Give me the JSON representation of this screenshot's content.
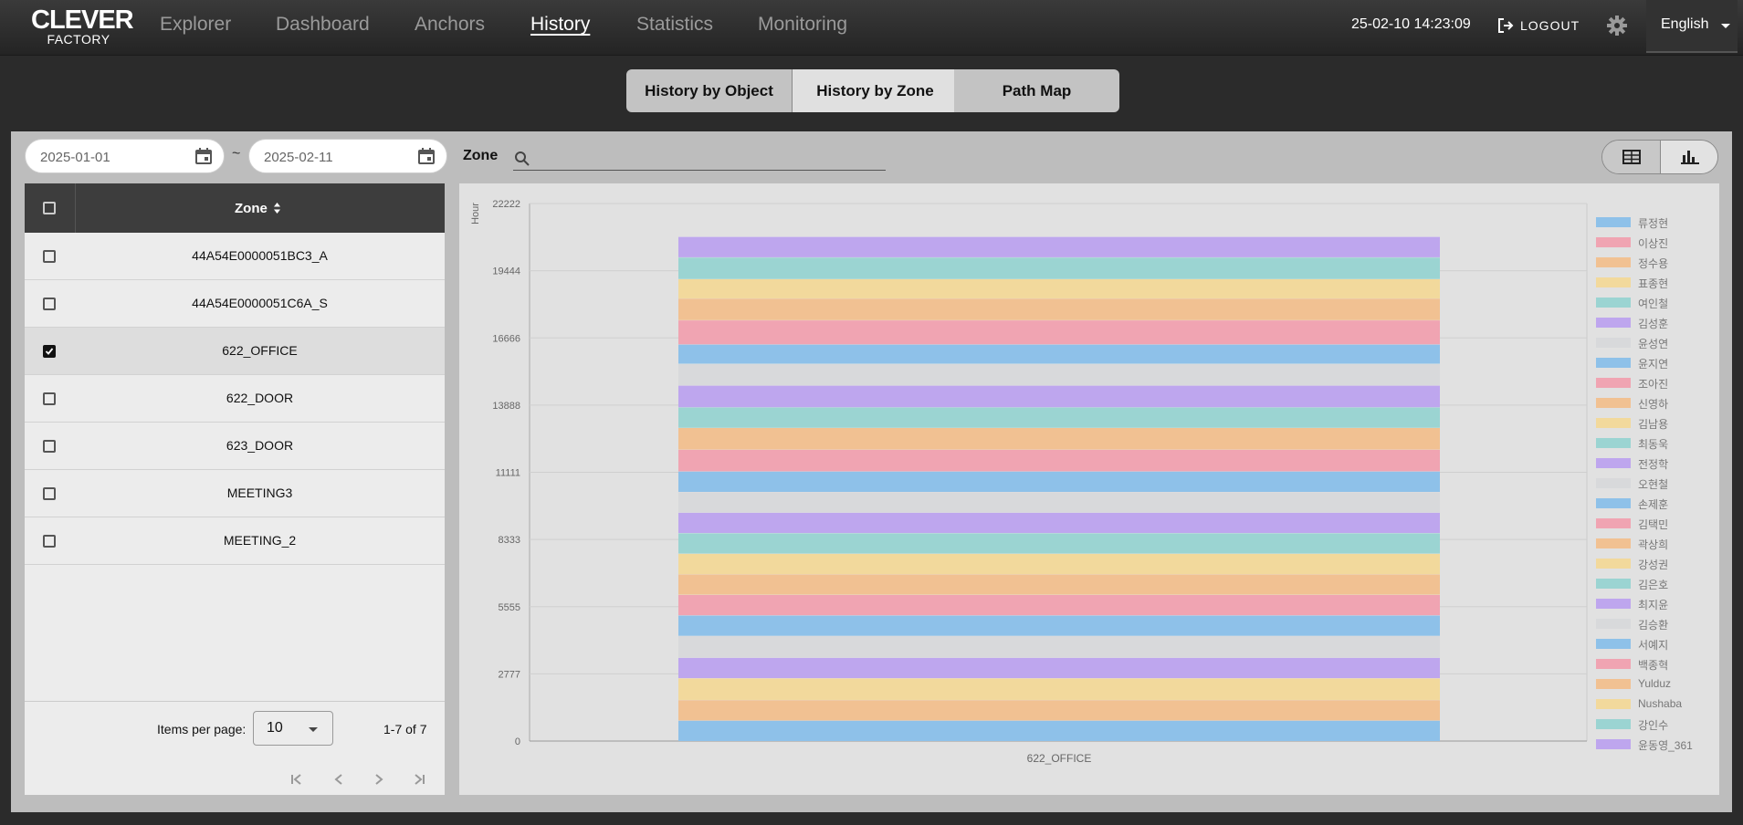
{
  "app": {
    "logo_top": "CLEVER",
    "logo_bottom": "FACTORY",
    "datetime": "25-02-10 14:23:09",
    "logout": "LOGOUT",
    "language": "English"
  },
  "nav": [
    "Explorer",
    "Dashboard",
    "Anchors",
    "History",
    "Statistics",
    "Monitoring"
  ],
  "active_nav": "History",
  "tabs": [
    "History by Object",
    "History by Zone",
    "Path Map"
  ],
  "active_tab": "History by Zone",
  "filters": {
    "start_date": "2025-01-01",
    "end_date": "2025-02-11",
    "separator": "~",
    "zone_label": "Zone",
    "zone_search_value": ""
  },
  "table": {
    "column_header": "Zone",
    "rows": [
      {
        "zone": "44A54E0000051BC3_A",
        "checked": false
      },
      {
        "zone": "44A54E0000051C6A_S",
        "checked": false
      },
      {
        "zone": "622_OFFICE",
        "checked": true
      },
      {
        "zone": "622_DOOR",
        "checked": false
      },
      {
        "zone": "623_DOOR",
        "checked": false
      },
      {
        "zone": "MEETING3",
        "checked": false
      },
      {
        "zone": "MEETING_2",
        "checked": false
      }
    ],
    "items_per_page_label": "Items per page:",
    "items_per_page": "10",
    "range_label": "1-7 of 7"
  },
  "chart_data": {
    "type": "bar",
    "stacked": true,
    "ylabel": "Hour",
    "xlabel": "",
    "categories": [
      "622_OFFICE"
    ],
    "ylim": [
      0,
      22222
    ],
    "yticks": [
      0,
      2777,
      5555,
      8333,
      11111,
      13888,
      16666,
      19444,
      22222
    ],
    "grid": true,
    "legend_position": "right",
    "series": [
      {
        "name": "류정현",
        "values": [
          0
        ]
      },
      {
        "name": "이상진",
        "values": [
          0
        ]
      },
      {
        "name": "정수용",
        "values": [
          0
        ]
      },
      {
        "name": "표종현",
        "values": [
          0
        ]
      },
      {
        "name": "여인철",
        "values": [
          0
        ]
      },
      {
        "name": "김성훈",
        "values": [
          0
        ]
      },
      {
        "name": "윤성연",
        "values": [
          0
        ]
      },
      {
        "name": "윤지연",
        "values": [
          850
        ]
      },
      {
        "name": "조아진",
        "values": [
          0
        ]
      },
      {
        "name": "신영하",
        "values": [
          850
        ]
      },
      {
        "name": "김남용",
        "values": [
          850
        ]
      },
      {
        "name": "최동욱",
        "values": [
          0
        ]
      },
      {
        "name": "전정학",
        "values": [
          900
        ]
      },
      {
        "name": "오현철",
        "values": [
          850
        ]
      },
      {
        "name": "손제훈",
        "values": [
          900
        ]
      },
      {
        "name": "김택민",
        "values": [
          850
        ]
      },
      {
        "name": "곽상희",
        "values": [
          850
        ]
      },
      {
        "name": "강성권",
        "values": [
          850
        ]
      },
      {
        "name": "김은호",
        "values": [
          850
        ]
      },
      {
        "name": "최지윤",
        "values": [
          850
        ]
      },
      {
        "name": "김승환",
        "values": [
          850
        ]
      },
      {
        "name": "서예지",
        "values": [
          850
        ]
      },
      {
        "name": "백종혁",
        "values": [
          900
        ]
      },
      {
        "name": "Yulduz",
        "values": [
          900
        ]
      },
      {
        "name": "Nushaba",
        "values": [
          850
        ]
      },
      {
        "name": "강인수",
        "values": [
          900
        ]
      },
      {
        "name": "윤동영_361",
        "values": [
          900
        ]
      },
      {
        "name": "류정현",
        "values": [
          800
        ]
      },
      {
        "name": "이상진",
        "values": [
          1000
        ]
      },
      {
        "name": "정수용",
        "values": [
          900
        ]
      },
      {
        "name": "표종현",
        "values": [
          800
        ]
      },
      {
        "name": "여인철",
        "values": [
          900
        ]
      },
      {
        "name": "김성훈",
        "values": [
          850
        ]
      }
    ],
    "legend": [
      {
        "name": "류정현",
        "color": "#8ec1e9"
      },
      {
        "name": "이상진",
        "color": "#f0a4b2"
      },
      {
        "name": "정수용",
        "color": "#f1c192"
      },
      {
        "name": "표종현",
        "color": "#f2d99c"
      },
      {
        "name": "여인철",
        "color": "#9bd4d2"
      },
      {
        "name": "김성훈",
        "color": "#bea6ee"
      },
      {
        "name": "윤성연",
        "color": "#d8d9db"
      },
      {
        "name": "윤지연",
        "color": "#8ec1e9"
      },
      {
        "name": "조아진",
        "color": "#f0a4b2"
      },
      {
        "name": "신영하",
        "color": "#f1c192"
      },
      {
        "name": "김남용",
        "color": "#f2d99c"
      },
      {
        "name": "최동욱",
        "color": "#9bd4d2"
      },
      {
        "name": "전정학",
        "color": "#bea6ee"
      },
      {
        "name": "오현철",
        "color": "#d8d9db"
      },
      {
        "name": "손제훈",
        "color": "#8ec1e9"
      },
      {
        "name": "김택민",
        "color": "#f0a4b2"
      },
      {
        "name": "곽상희",
        "color": "#f1c192"
      },
      {
        "name": "강성권",
        "color": "#f2d99c"
      },
      {
        "name": "김은호",
        "color": "#9bd4d2"
      },
      {
        "name": "최지윤",
        "color": "#bea6ee"
      },
      {
        "name": "김승환",
        "color": "#d8d9db"
      },
      {
        "name": "서예지",
        "color": "#8ec1e9"
      },
      {
        "name": "백종혁",
        "color": "#f0a4b2"
      },
      {
        "name": "Yulduz",
        "color": "#f1c192"
      },
      {
        "name": "Nushaba",
        "color": "#f2d99c"
      },
      {
        "name": "강인수",
        "color": "#9bd4d2"
      },
      {
        "name": "윤동영_361",
        "color": "#bea6ee"
      }
    ],
    "stack_segments": [
      {
        "color": "#8ec1e9",
        "value": 850
      },
      {
        "color": "#f1c192",
        "value": 850
      },
      {
        "color": "#f2d99c",
        "value": 900
      },
      {
        "color": "#bea6ee",
        "value": 850
      },
      {
        "color": "#d8d9db",
        "value": 900
      },
      {
        "color": "#8ec1e9",
        "value": 850
      },
      {
        "color": "#f0a4b2",
        "value": 850
      },
      {
        "color": "#f1c192",
        "value": 850
      },
      {
        "color": "#f2d99c",
        "value": 850
      },
      {
        "color": "#9bd4d2",
        "value": 850
      },
      {
        "color": "#bea6ee",
        "value": 850
      },
      {
        "color": "#d8d9db",
        "value": 850
      },
      {
        "color": "#8ec1e9",
        "value": 850
      },
      {
        "color": "#f0a4b2",
        "value": 900
      },
      {
        "color": "#f1c192",
        "value": 900
      },
      {
        "color": "#9bd4d2",
        "value": 850
      },
      {
        "color": "#bea6ee",
        "value": 900
      },
      {
        "color": "#d8d9db",
        "value": 900
      },
      {
        "color": "#8ec1e9",
        "value": 800
      },
      {
        "color": "#f0a4b2",
        "value": 1000
      },
      {
        "color": "#f1c192",
        "value": 900
      },
      {
        "color": "#f2d99c",
        "value": 800
      },
      {
        "color": "#9bd4d2",
        "value": 900
      },
      {
        "color": "#bea6ee",
        "value": 850
      }
    ]
  }
}
